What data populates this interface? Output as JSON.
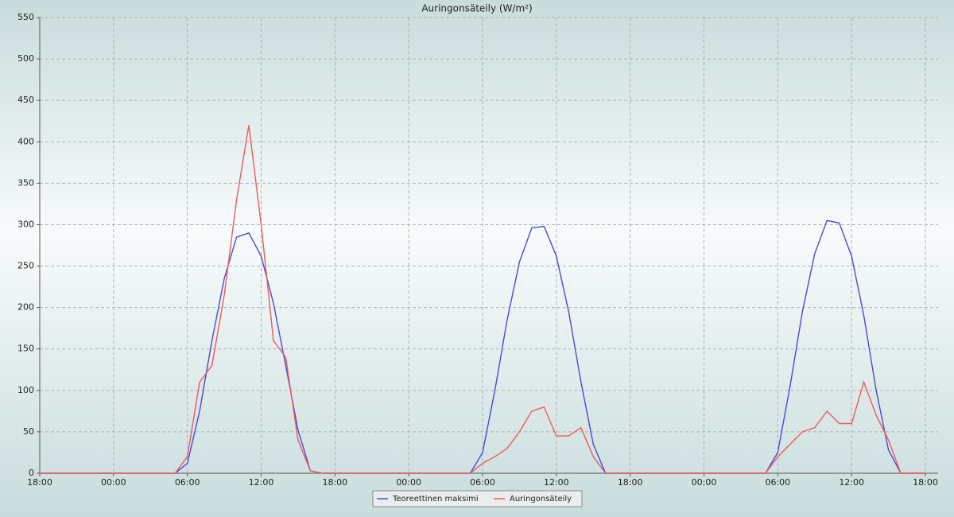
{
  "chart_data": {
    "type": "line",
    "title": "Auringonsäteily (W/m²)",
    "x": [
      0,
      1,
      2,
      3,
      4,
      5,
      6,
      7,
      8,
      9,
      10,
      11,
      12,
      13,
      14,
      15,
      16,
      17,
      18,
      19,
      20,
      21,
      22,
      23,
      24,
      25,
      26,
      27,
      28,
      29,
      30,
      31,
      32,
      33,
      34,
      35,
      36,
      37,
      38,
      39,
      40,
      41,
      42,
      43,
      44,
      45,
      46,
      47,
      48,
      49,
      50,
      51,
      52,
      53,
      54,
      55,
      56,
      57,
      58,
      59,
      60,
      61,
      62,
      63,
      64,
      65,
      66,
      67,
      68,
      69,
      70,
      71,
      72
    ],
    "series": [
      {
        "name": "Teoreettinen maksimi",
        "color": "#4a4ad8",
        "values": [
          0,
          0,
          0,
          0,
          0,
          0,
          0,
          0,
          0,
          0,
          0,
          0,
          12,
          75,
          160,
          235,
          285,
          290,
          262,
          205,
          130,
          52,
          3,
          0,
          0,
          0,
          0,
          0,
          0,
          0,
          0,
          0,
          0,
          0,
          0,
          0,
          25,
          100,
          185,
          255,
          296,
          298,
          262,
          195,
          110,
          35,
          0,
          0,
          0,
          0,
          0,
          0,
          0,
          0,
          0,
          0,
          0,
          0,
          0,
          0,
          25,
          105,
          195,
          265,
          305,
          302,
          262,
          190,
          100,
          28,
          0,
          0,
          0
        ]
      },
      {
        "name": "Auringonsäteily",
        "color": "#ee5a5a",
        "values": [
          0,
          0,
          0,
          0,
          0,
          0,
          0,
          0,
          0,
          0,
          0,
          0,
          20,
          110,
          130,
          215,
          330,
          420,
          300,
          160,
          140,
          40,
          3,
          0,
          0,
          0,
          0,
          0,
          0,
          0,
          0,
          0,
          0,
          0,
          0,
          0,
          12,
          20,
          30,
          50,
          75,
          80,
          45,
          45,
          55,
          20,
          0,
          0,
          0,
          0,
          0,
          0,
          0,
          0,
          0,
          0,
          0,
          0,
          0,
          0,
          20,
          35,
          50,
          55,
          75,
          60,
          60,
          110,
          70,
          40,
          0,
          0,
          0
        ]
      }
    ],
    "xlim": [
      0,
      72
    ],
    "xticks": [
      {
        "value": 0,
        "label": "18:00"
      },
      {
        "value": 6,
        "label": "00:00"
      },
      {
        "value": 12,
        "label": "06:00"
      },
      {
        "value": 18,
        "label": "12:00"
      },
      {
        "value": 24,
        "label": "18:00"
      },
      {
        "value": 30,
        "label": "00:00"
      },
      {
        "value": 36,
        "label": "06:00"
      },
      {
        "value": 42,
        "label": "12:00"
      },
      {
        "value": 48,
        "label": "18:00"
      },
      {
        "value": 54,
        "label": "00:00"
      },
      {
        "value": 60,
        "label": "06:00"
      },
      {
        "value": 66,
        "label": "12:00"
      },
      {
        "value": 72,
        "label": "18:00"
      }
    ],
    "ylim": [
      0,
      550
    ],
    "yticks": [
      0,
      50,
      100,
      150,
      200,
      250,
      300,
      350,
      400,
      450,
      500,
      550
    ],
    "grid": true,
    "legend": "bottom"
  }
}
